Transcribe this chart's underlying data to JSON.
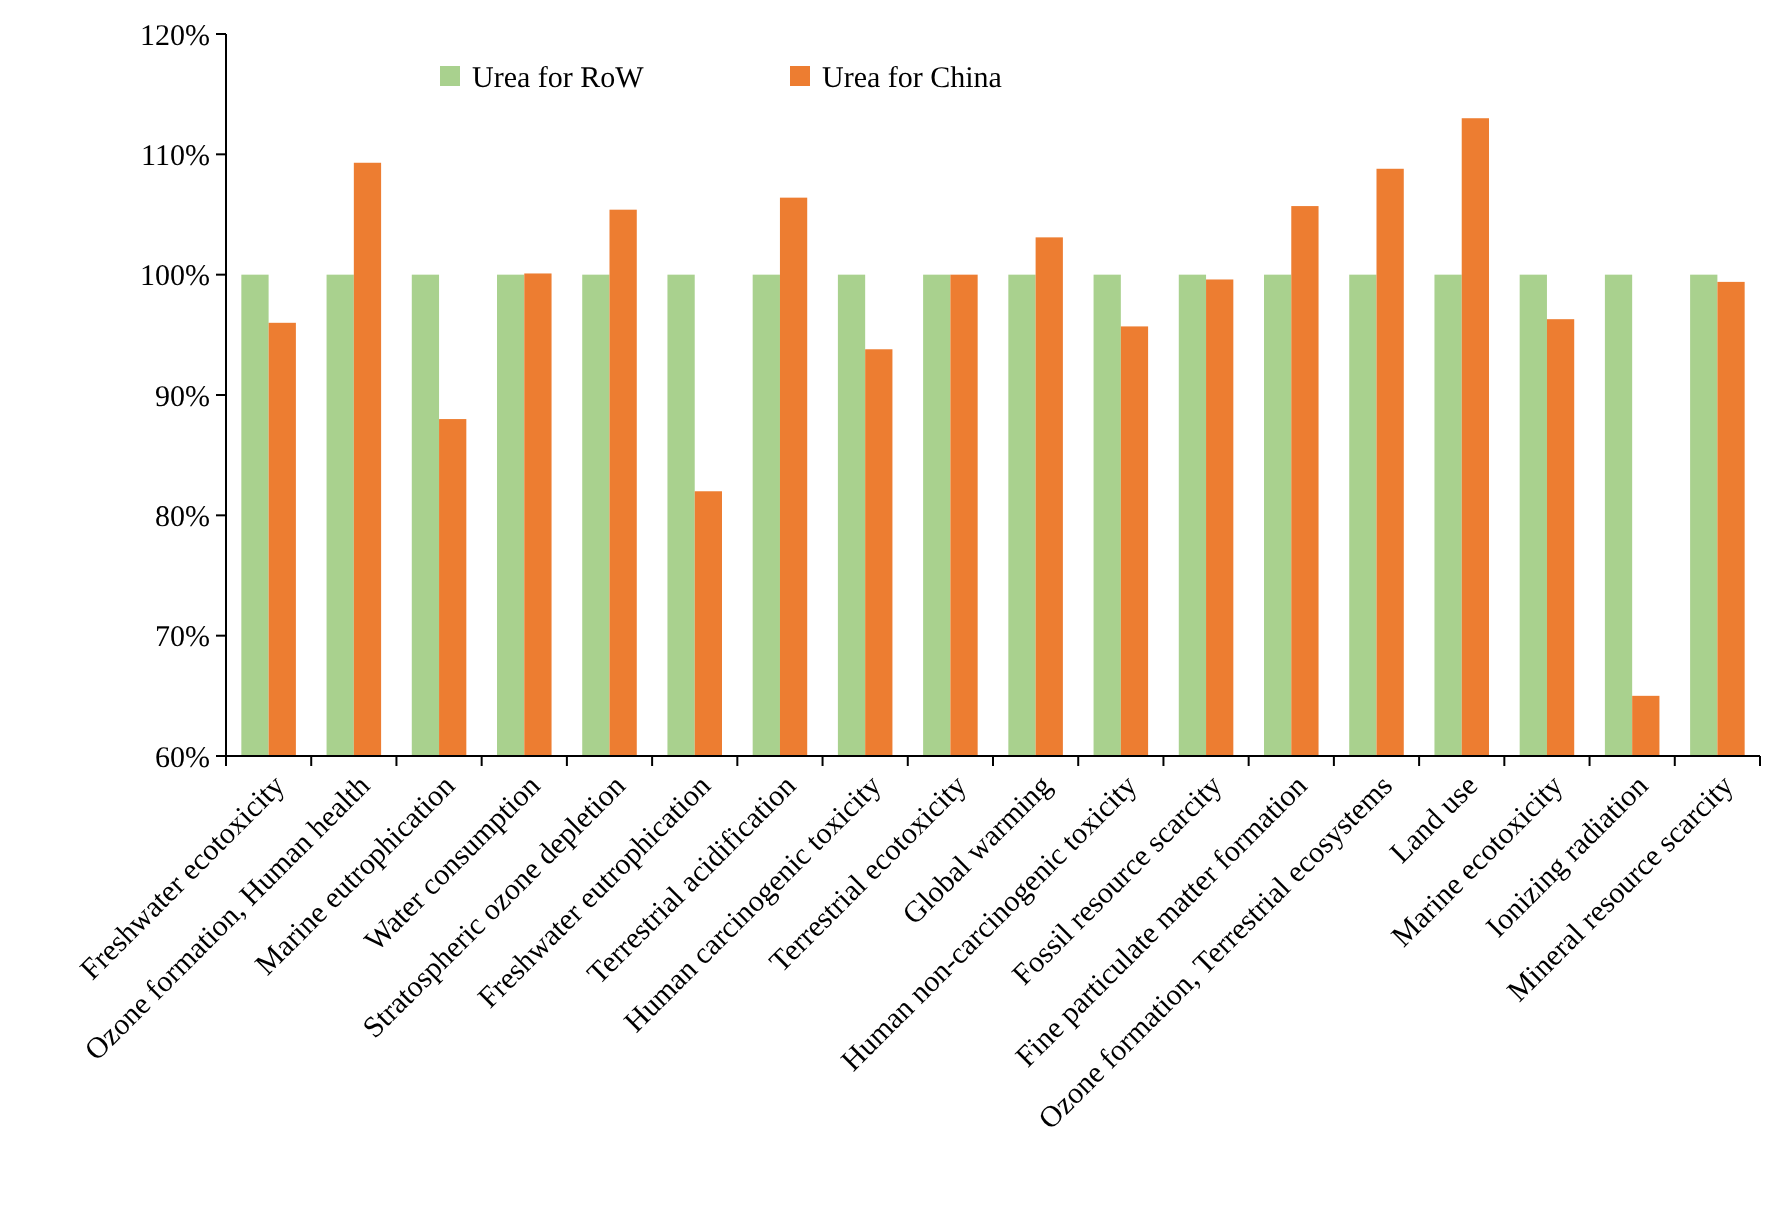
{
  "chart_data": {
    "type": "bar",
    "categories": [
      "Freshwater ecotoxicity",
      "Ozone formation, Human health",
      "Marine eutrophication",
      "Water consumption",
      "Stratospheric ozone depletion",
      "Freshwater eutrophication",
      "Terrestrial acidification",
      "Human carcinogenic toxicity",
      "Terrestrial ecotoxicity",
      "Global warming",
      "Human non-carcinogenic toxicity",
      "Fossil resource scarcity",
      "Fine particulate matter formation",
      "Ozone formation, Terrestrial ecosystems",
      "Land use",
      "Marine ecotoxicity",
      "Ionizing radiation",
      "Mineral resource scarcity"
    ],
    "series": [
      {
        "name": "Urea for RoW",
        "color": "#a9d18e",
        "values": [
          100,
          100,
          100,
          100,
          100,
          100,
          100,
          100,
          100,
          100,
          100,
          100,
          100,
          100,
          100,
          100,
          100,
          100
        ]
      },
      {
        "name": "Urea for China",
        "color": "#ed7d31",
        "values": [
          96,
          109.3,
          88,
          100.1,
          105.4,
          82,
          106.4,
          93.8,
          100,
          103.1,
          95.7,
          99.6,
          105.7,
          108.8,
          113,
          96.3,
          65,
          99.4
        ]
      }
    ],
    "ylim": [
      60,
      120
    ],
    "yticks": [
      {
        "value": 60,
        "label": "60%"
      },
      {
        "value": 70,
        "label": "70%"
      },
      {
        "value": 80,
        "label": "80%"
      },
      {
        "value": 90,
        "label": "90%"
      },
      {
        "value": 100,
        "label": "100%"
      },
      {
        "value": 110,
        "label": "110%"
      },
      {
        "value": 120,
        "label": "120%"
      }
    ],
    "grid": false,
    "legend": "top"
  }
}
